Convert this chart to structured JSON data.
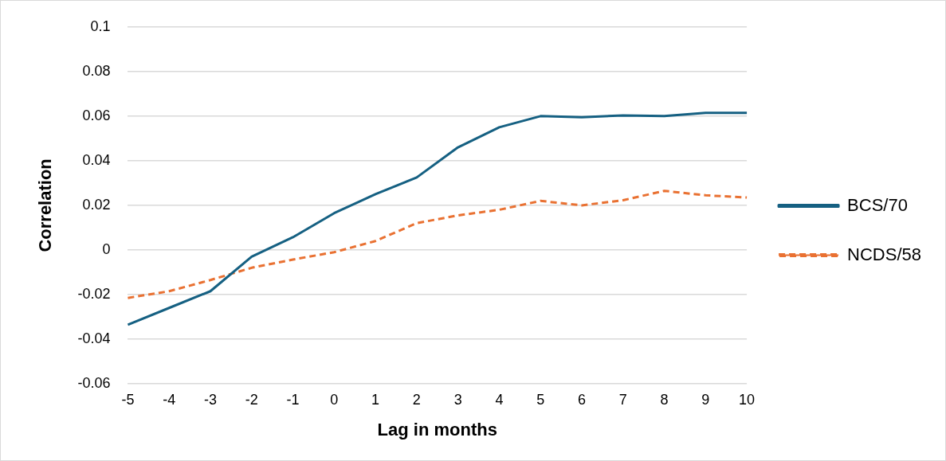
{
  "chart_data": {
    "type": "line",
    "xlabel": "Lag in months",
    "ylabel": "Correlation",
    "categories": [
      "-5",
      "-4",
      "-3",
      "-2",
      "-1",
      "0",
      "1",
      "2",
      "3",
      "4",
      "5",
      "6",
      "7",
      "8",
      "9",
      "10"
    ],
    "series": [
      {
        "name": "BCS/70",
        "color": "#156082",
        "line_style": "solid",
        "values": [
          -0.0335,
          -0.026,
          -0.0185,
          -0.003,
          0.0057,
          0.0165,
          0.025,
          0.0325,
          0.046,
          0.055,
          0.06,
          0.0595,
          0.0603,
          0.06,
          0.0615,
          0.0615
        ]
      },
      {
        "name": "NCDS/58",
        "color": "#e97132",
        "line_style": "dashed",
        "values": [
          -0.0215,
          -0.0185,
          -0.0135,
          -0.008,
          -0.0043,
          -0.001,
          0.004,
          0.012,
          0.0155,
          0.018,
          0.022,
          0.02,
          0.0223,
          0.0265,
          0.0245,
          0.0235
        ]
      }
    ],
    "ylim": [
      -0.06,
      0.1
    ],
    "yticks": [
      -0.06,
      -0.04,
      -0.02,
      0,
      0.02,
      0.04,
      0.06,
      0.08,
      0.1
    ],
    "grid": "y",
    "legend": "right",
    "marker": "none"
  }
}
